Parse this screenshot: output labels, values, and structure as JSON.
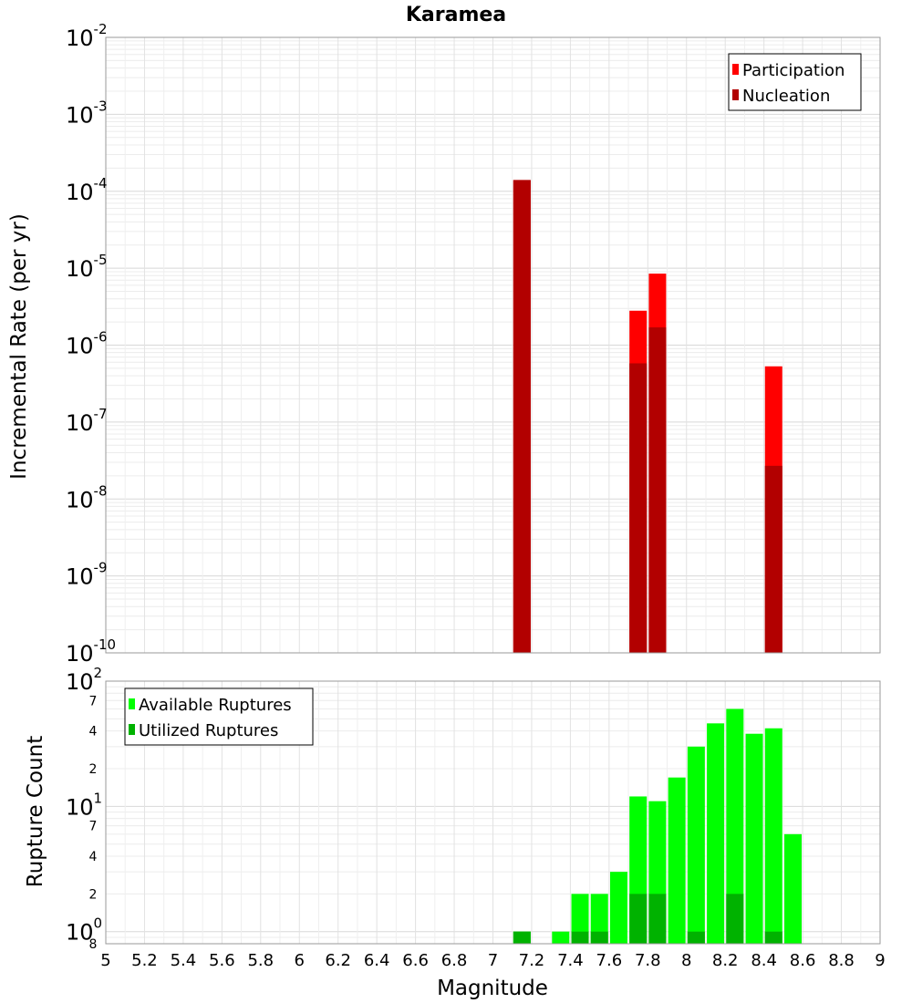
{
  "chart_data": [
    {
      "type": "bar",
      "title": "Karamea",
      "ylabel": "Incremental Rate (per yr)",
      "xlim": [
        5,
        9
      ],
      "ylim": [
        1e-10,
        0.01
      ],
      "yscale": "log",
      "grid": true,
      "legend_position": "top-right",
      "x_ticks": [
        "5",
        "5.2",
        "5.4",
        "5.6",
        "5.8",
        "6",
        "6.2",
        "6.4",
        "6.6",
        "6.8",
        "7",
        "7.2",
        "7.4",
        "7.6",
        "7.8",
        "8",
        "8.2",
        "8.4",
        "8.6",
        "8.8",
        "9"
      ],
      "y_ticks": [
        {
          "base": "10",
          "exp": "-10",
          "value": 1e-10
        },
        {
          "base": "10",
          "exp": "-9",
          "value": 1e-09
        },
        {
          "base": "10",
          "exp": "-8",
          "value": 1e-08
        },
        {
          "base": "10",
          "exp": "-7",
          "value": 1e-07
        },
        {
          "base": "10",
          "exp": "-6",
          "value": 1e-06
        },
        {
          "base": "10",
          "exp": "-5",
          "value": 1e-05
        },
        {
          "base": "10",
          "exp": "-4",
          "value": 0.0001
        },
        {
          "base": "10",
          "exp": "-3",
          "value": 0.001
        },
        {
          "base": "10",
          "exp": "-2",
          "value": 0.01
        }
      ],
      "series": [
        {
          "name": "Participation",
          "color": "#ff0000",
          "x": [
            7.15,
            7.75,
            7.85,
            8.45
          ],
          "values": [
            0.00014,
            2.8e-06,
            8.5e-06,
            5.3e-07
          ]
        },
        {
          "name": "Nucleation",
          "color": "#b20000",
          "x": [
            7.15,
            7.75,
            7.85,
            8.45
          ],
          "values": [
            0.00014,
            5.8e-07,
            1.7e-06,
            2.7e-08
          ]
        }
      ]
    },
    {
      "type": "bar",
      "xlabel": "Magnitude",
      "ylabel": "Rupture Count",
      "xlim": [
        5,
        9
      ],
      "ylim": [
        0.8,
        100
      ],
      "yscale": "log",
      "grid": true,
      "legend_position": "top-left",
      "y_ticks": [
        {
          "base": "10",
          "exp": "0",
          "value": 1
        },
        {
          "base": "10",
          "exp": "1",
          "value": 10
        },
        {
          "base": "10",
          "exp": "2",
          "value": 100
        }
      ],
      "y_minor_ticks": [
        {
          "label": "8",
          "value": 0.8
        },
        {
          "label": "2",
          "value": 2
        },
        {
          "label": "4",
          "value": 4
        },
        {
          "label": "7",
          "value": 7
        },
        {
          "label": "2",
          "value": 20
        },
        {
          "label": "4",
          "value": 40
        },
        {
          "label": "7",
          "value": 70
        }
      ],
      "series": [
        {
          "name": "Available Ruptures",
          "color": "#00ff00",
          "x": [
            7.15,
            7.35,
            7.45,
            7.55,
            7.65,
            7.75,
            7.85,
            7.95,
            8.05,
            8.15,
            8.25,
            8.35,
            8.45,
            8.55
          ],
          "values": [
            1,
            1,
            2,
            2,
            3,
            12,
            11,
            17,
            30,
            46,
            60,
            38,
            42,
            6
          ]
        },
        {
          "name": "Utilized Ruptures",
          "color": "#00b200",
          "x": [
            7.15,
            7.45,
            7.55,
            7.75,
            7.85,
            8.05,
            8.25,
            8.45
          ],
          "values": [
            1,
            1,
            1,
            2,
            2,
            1,
            2,
            1
          ]
        }
      ]
    }
  ]
}
